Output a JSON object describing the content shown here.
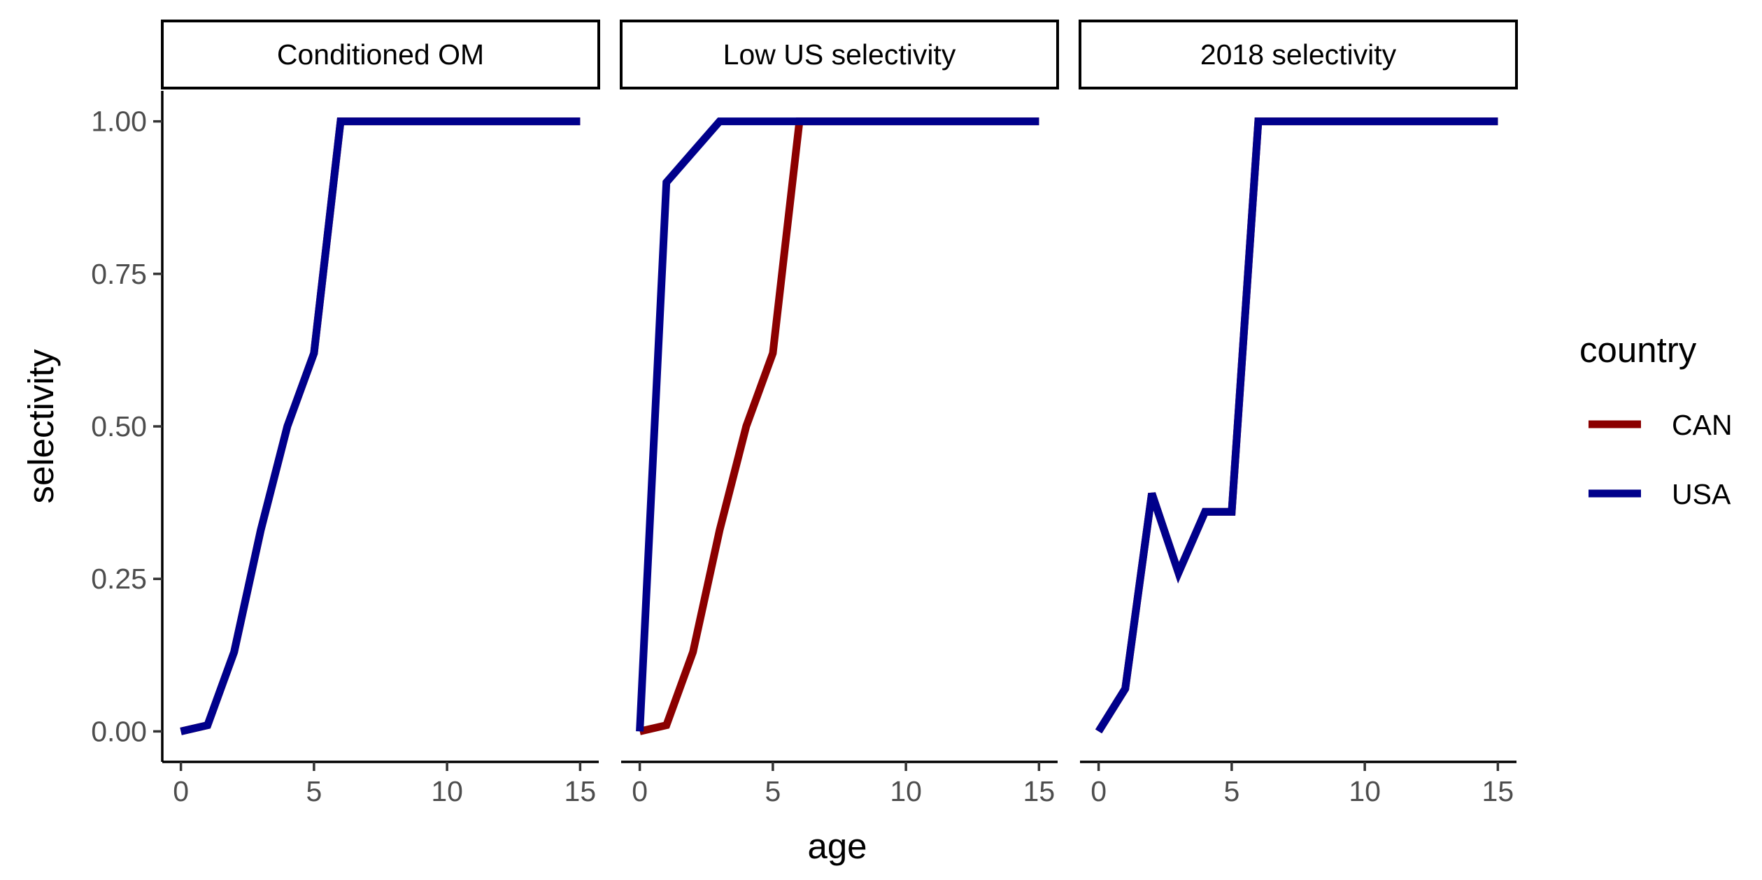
{
  "chart_data": {
    "type": "line",
    "xlabel": "age",
    "ylabel": "selectivity",
    "xlim": [
      -0.7,
      15.7
    ],
    "ylim": [
      -0.05,
      1.05
    ],
    "x_ticks": [
      0,
      5,
      10,
      15
    ],
    "y_ticks": [
      0,
      0.25,
      0.5,
      0.75,
      1
    ],
    "y_tick_labels": [
      "0.00",
      "0.25",
      "0.50",
      "0.75",
      "1.00"
    ],
    "grid": false,
    "legend": {
      "title": "country",
      "position": "right",
      "entries": [
        {
          "name": "CAN",
          "color": "#8B0000"
        },
        {
          "name": "USA",
          "color": "#00008B"
        }
      ]
    },
    "colors": {
      "CAN": "#8B0000",
      "USA": "#00008B"
    },
    "panels": [
      {
        "title": "Conditioned OM",
        "series": [
          {
            "name": "CAN",
            "x": [
              0,
              1,
              2,
              3,
              4,
              5,
              6,
              7,
              8,
              9,
              10,
              11,
              12,
              13,
              14,
              15
            ],
            "y": [
              0.0,
              0.01,
              0.13,
              0.33,
              0.5,
              0.62,
              1,
              1,
              1,
              1,
              1,
              1,
              1,
              1,
              1,
              1
            ]
          },
          {
            "name": "USA",
            "x": [
              0,
              1,
              2,
              3,
              4,
              5,
              6,
              7,
              8,
              9,
              10,
              11,
              12,
              13,
              14,
              15
            ],
            "y": [
              0.0,
              0.01,
              0.13,
              0.33,
              0.5,
              0.62,
              1,
              1,
              1,
              1,
              1,
              1,
              1,
              1,
              1,
              1
            ]
          }
        ]
      },
      {
        "title": "Low US selectivity",
        "series": [
          {
            "name": "CAN",
            "x": [
              0,
              1,
              2,
              3,
              4,
              5,
              6,
              7,
              8,
              9,
              10,
              11,
              12,
              13,
              14,
              15
            ],
            "y": [
              0.0,
              0.01,
              0.13,
              0.33,
              0.5,
              0.62,
              1,
              1,
              1,
              1,
              1,
              1,
              1,
              1,
              1,
              1
            ]
          },
          {
            "name": "USA",
            "x": [
              0,
              1,
              2,
              3,
              4,
              5,
              6,
              7,
              8,
              9,
              10,
              11,
              12,
              13,
              14,
              15
            ],
            "y": [
              0.0,
              0.9,
              0.95,
              1,
              1,
              1,
              1,
              1,
              1,
              1,
              1,
              1,
              1,
              1,
              1,
              1
            ]
          }
        ]
      },
      {
        "title": "2018 selectivity",
        "series": [
          {
            "name": "CAN",
            "x": [
              0,
              1,
              2,
              3,
              4,
              5,
              6,
              7,
              8,
              9,
              10,
              11,
              12,
              13,
              14,
              15
            ],
            "y": [
              0.0,
              0.07,
              0.39,
              0.26,
              0.36,
              0.36,
              1,
              1,
              1,
              1,
              1,
              1,
              1,
              1,
              1,
              1
            ]
          },
          {
            "name": "USA",
            "x": [
              0,
              1,
              2,
              3,
              4,
              5,
              6,
              7,
              8,
              9,
              10,
              11,
              12,
              13,
              14,
              15
            ],
            "y": [
              0.0,
              0.07,
              0.39,
              0.26,
              0.36,
              0.36,
              1,
              1,
              1,
              1,
              1,
              1,
              1,
              1,
              1,
              1
            ]
          }
        ]
      }
    ]
  }
}
